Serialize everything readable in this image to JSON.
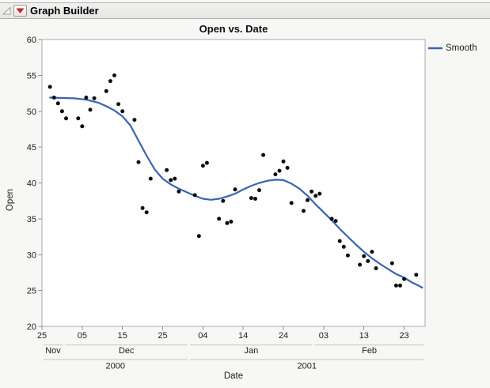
{
  "window": {
    "title": "Graph Builder"
  },
  "header": {
    "icons": {
      "disclosure": "open-disclosure-triangle",
      "menu": "red-triangle-menu"
    }
  },
  "legend": {
    "position": "right",
    "entries": [
      {
        "label": "Smooth",
        "color": "#3b63b0",
        "type": "line"
      }
    ]
  },
  "colors": {
    "smooth_line": "#3b63b0",
    "data_point": "#0d0d0d",
    "plot_border": "#a9a9a9",
    "tick": "#8f8f8f",
    "span_line": "#c4c4c4",
    "text": "#1d1d1d",
    "red_triangle": "#cd2424",
    "plot_background": "#ffffff"
  },
  "chart_data": {
    "type": "scatter",
    "title": "Open vs. Date",
    "xlabel": "Date",
    "ylabel": "Open",
    "grid": "off",
    "legend_position": "right",
    "ylim": [
      20,
      60
    ],
    "y_ticks": [
      20,
      25,
      30,
      35,
      40,
      45,
      50,
      55,
      60
    ],
    "x_axis": {
      "unit": "days since 2000-11-25",
      "range_days": [
        0,
        95.2
      ],
      "day_ticks": [
        {
          "day": 0,
          "label": "25"
        },
        {
          "day": 10,
          "label": "05"
        },
        {
          "day": 20,
          "label": "15"
        },
        {
          "day": 30,
          "label": "25"
        },
        {
          "day": 40,
          "label": "04"
        },
        {
          "day": 50,
          "label": "14"
        },
        {
          "day": 60,
          "label": "24"
        },
        {
          "day": 70,
          "label": "03"
        },
        {
          "day": 80,
          "label": "13"
        },
        {
          "day": 90,
          "label": "23"
        }
      ],
      "month_spans": [
        {
          "label": "Nov",
          "start": 0,
          "end": 5.5
        },
        {
          "label": "Dec",
          "start": 5.5,
          "end": 36.5
        },
        {
          "label": "Jan",
          "start": 36.5,
          "end": 67.5
        },
        {
          "label": "Feb",
          "start": 67.5,
          "end": 95.2
        }
      ],
      "year_spans": [
        {
          "label": "2000",
          "start": 0,
          "end": 36.5
        },
        {
          "label": "2001",
          "start": 36.5,
          "end": 95.2
        }
      ]
    },
    "series": [
      {
        "name": "Open",
        "type": "scatter",
        "color": "#0d0d0d",
        "points": [
          {
            "date": "2000-11-27",
            "day": 2,
            "open": 53.4
          },
          {
            "date": "2000-11-28",
            "day": 3,
            "open": 51.9
          },
          {
            "date": "2000-11-29",
            "day": 4,
            "open": 51.1
          },
          {
            "date": "2000-11-30",
            "day": 5,
            "open": 50.0
          },
          {
            "date": "2000-12-01",
            "day": 6,
            "open": 49.0
          },
          {
            "date": "2000-12-04",
            "day": 9,
            "open": 49.0
          },
          {
            "date": "2000-12-05",
            "day": 10,
            "open": 47.9
          },
          {
            "date": "2000-12-06",
            "day": 11,
            "open": 51.9
          },
          {
            "date": "2000-12-07",
            "day": 12,
            "open": 50.2
          },
          {
            "date": "2000-12-08",
            "day": 13,
            "open": 51.8
          },
          {
            "date": "2000-12-11",
            "day": 16,
            "open": 52.8
          },
          {
            "date": "2000-12-12",
            "day": 17,
            "open": 54.2
          },
          {
            "date": "2000-12-13",
            "day": 18,
            "open": 55.0
          },
          {
            "date": "2000-12-14",
            "day": 19,
            "open": 51.0
          },
          {
            "date": "2000-12-15",
            "day": 20,
            "open": 50.0
          },
          {
            "date": "2000-12-18",
            "day": 23,
            "open": 48.8
          },
          {
            "date": "2000-12-19",
            "day": 24,
            "open": 42.9
          },
          {
            "date": "2000-12-20",
            "day": 25,
            "open": 36.5
          },
          {
            "date": "2000-12-21",
            "day": 26,
            "open": 35.9
          },
          {
            "date": "2000-12-22",
            "day": 27,
            "open": 40.6
          },
          {
            "date": "2000-12-26",
            "day": 31,
            "open": 41.8
          },
          {
            "date": "2000-12-27",
            "day": 32,
            "open": 40.4
          },
          {
            "date": "2000-12-28",
            "day": 33,
            "open": 40.6
          },
          {
            "date": "2000-12-29",
            "day": 34,
            "open": 38.8
          },
          {
            "date": "2001-01-02",
            "day": 38,
            "open": 38.3
          },
          {
            "date": "2001-01-03",
            "day": 39,
            "open": 32.6
          },
          {
            "date": "2001-01-04",
            "day": 40,
            "open": 42.4
          },
          {
            "date": "2001-01-05",
            "day": 41,
            "open": 42.8
          },
          {
            "date": "2001-01-08",
            "day": 44,
            "open": 35.0
          },
          {
            "date": "2001-01-09",
            "day": 45,
            "open": 37.5
          },
          {
            "date": "2001-01-10",
            "day": 46,
            "open": 34.4
          },
          {
            "date": "2001-01-11",
            "day": 47,
            "open": 34.6
          },
          {
            "date": "2001-01-12",
            "day": 48,
            "open": 39.1
          },
          {
            "date": "2001-01-16",
            "day": 52,
            "open": 37.9
          },
          {
            "date": "2001-01-17",
            "day": 53,
            "open": 37.8
          },
          {
            "date": "2001-01-18",
            "day": 54,
            "open": 39.0
          },
          {
            "date": "2001-01-19",
            "day": 55,
            "open": 43.9
          },
          {
            "date": "2001-01-22",
            "day": 58,
            "open": 41.2
          },
          {
            "date": "2001-01-23",
            "day": 59,
            "open": 41.7
          },
          {
            "date": "2001-01-24",
            "day": 60,
            "open": 43.0
          },
          {
            "date": "2001-01-25",
            "day": 61,
            "open": 42.1
          },
          {
            "date": "2001-01-26",
            "day": 62,
            "open": 37.2
          },
          {
            "date": "2001-01-29",
            "day": 65,
            "open": 36.1
          },
          {
            "date": "2001-01-30",
            "day": 66,
            "open": 37.6
          },
          {
            "date": "2001-01-31",
            "day": 67,
            "open": 38.8
          },
          {
            "date": "2001-02-01",
            "day": 68,
            "open": 38.2
          },
          {
            "date": "2001-02-02",
            "day": 69,
            "open": 38.5
          },
          {
            "date": "2001-02-05",
            "day": 72,
            "open": 35.0
          },
          {
            "date": "2001-02-06",
            "day": 73,
            "open": 34.7
          },
          {
            "date": "2001-02-07",
            "day": 74,
            "open": 31.9
          },
          {
            "date": "2001-02-08",
            "day": 75,
            "open": 31.1
          },
          {
            "date": "2001-02-09",
            "day": 76,
            "open": 29.9
          },
          {
            "date": "2001-02-12",
            "day": 79,
            "open": 28.6
          },
          {
            "date": "2001-02-13",
            "day": 80,
            "open": 29.8
          },
          {
            "date": "2001-02-14",
            "day": 81,
            "open": 29.1
          },
          {
            "date": "2001-02-15",
            "day": 82,
            "open": 30.4
          },
          {
            "date": "2001-02-16",
            "day": 83,
            "open": 28.1
          },
          {
            "date": "2001-02-20",
            "day": 87,
            "open": 28.8
          },
          {
            "date": "2001-02-21",
            "day": 88,
            "open": 25.7
          },
          {
            "date": "2001-02-22",
            "day": 89,
            "open": 25.7
          },
          {
            "date": "2001-02-23",
            "day": 90,
            "open": 26.6
          },
          {
            "date": "2001-02-26",
            "day": 93,
            "open": 27.2
          }
        ]
      },
      {
        "name": "Smooth",
        "type": "line",
        "color": "#3b63b0",
        "points": [
          [
            2,
            51.9
          ],
          [
            5,
            51.85
          ],
          [
            8,
            51.8
          ],
          [
            11,
            51.6
          ],
          [
            14,
            51.2
          ],
          [
            16,
            50.7
          ],
          [
            18,
            50.1
          ],
          [
            20,
            49.3
          ],
          [
            22,
            48.0
          ],
          [
            24,
            45.9
          ],
          [
            26,
            43.8
          ],
          [
            28,
            41.9
          ],
          [
            30,
            40.6
          ],
          [
            32,
            39.8
          ],
          [
            34,
            39.2
          ],
          [
            36,
            38.7
          ],
          [
            38,
            38.2
          ],
          [
            40,
            37.8
          ],
          [
            42,
            37.65
          ],
          [
            44,
            37.8
          ],
          [
            46,
            38.1
          ],
          [
            48,
            38.5
          ],
          [
            50,
            39.1
          ],
          [
            52,
            39.6
          ],
          [
            54,
            40.0
          ],
          [
            56,
            40.3
          ],
          [
            58,
            40.45
          ],
          [
            60,
            40.4
          ],
          [
            62,
            39.9
          ],
          [
            64,
            39.2
          ],
          [
            66,
            38.2
          ],
          [
            68,
            37.0
          ],
          [
            70,
            35.9
          ],
          [
            72,
            34.8
          ],
          [
            74,
            33.6
          ],
          [
            76,
            32.5
          ],
          [
            78,
            31.4
          ],
          [
            80,
            30.4
          ],
          [
            82,
            29.5
          ],
          [
            84,
            28.7
          ],
          [
            86,
            28.0
          ],
          [
            88,
            27.3
          ],
          [
            90,
            26.8
          ],
          [
            92,
            26.1
          ],
          [
            93.5,
            25.7
          ],
          [
            94.5,
            25.4
          ]
        ]
      }
    ]
  }
}
